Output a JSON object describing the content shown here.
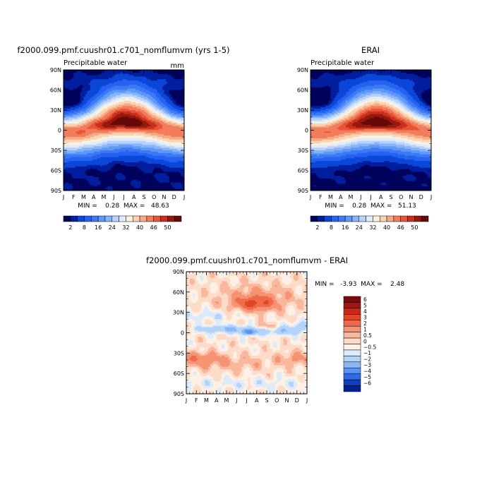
{
  "chart_data": [
    {
      "type": "heatmap",
      "title": "f2000.099.pmf.cuushr01.c701_nomflumvm (yrs 1-5)",
      "subtitle": "Precipitable water",
      "units": "mm",
      "x_ticks": [
        "J",
        "F",
        "M",
        "A",
        "M",
        "J",
        "J",
        "A",
        "S",
        "O",
        "N",
        "D",
        "J"
      ],
      "y_ticks": [
        "90N",
        "60N",
        "30N",
        "0",
        "30S",
        "60S",
        "90S"
      ],
      "stats_text": "MIN =    0.28  MAX =   48.63",
      "min": 0.28,
      "max": 48.63,
      "colorbar_labels": [
        "2",
        "8",
        "16",
        "24",
        "32",
        "40",
        "46",
        "50"
      ],
      "colorbar_colors": [
        "#00035c",
        "#001f9e",
        "#0b47d8",
        "#2562f2",
        "#3d7af5",
        "#5e98f9",
        "#87b3fa",
        "#b7d2fb",
        "#e0ecfd",
        "#fbf2de",
        "#fcd3b2",
        "#f9a885",
        "#f27d5d",
        "#e85536",
        "#c8311c",
        "#96190f",
        "#650a07"
      ],
      "itcz_peak_lat": 8,
      "itcz_peak_month_index": 6.3
    },
    {
      "type": "heatmap",
      "title": "ERAI",
      "subtitle": "Precipitable water",
      "x_ticks": [
        "J",
        "F",
        "M",
        "A",
        "M",
        "J",
        "J",
        "A",
        "S",
        "O",
        "N",
        "D",
        "J"
      ],
      "y_ticks": [
        "90N",
        "60N",
        "30N",
        "0",
        "30S",
        "60S",
        "90S"
      ],
      "stats_text": "MIN =    0.28  MAX =   51.13",
      "min": 0.28,
      "max": 51.13,
      "colorbar_labels": [
        "2",
        "8",
        "16",
        "24",
        "32",
        "40",
        "46",
        "50"
      ],
      "colorbar_colors": [
        "#00035c",
        "#001f9e",
        "#0b47d8",
        "#2562f2",
        "#3d7af5",
        "#5e98f9",
        "#87b3fa",
        "#b7d2fb",
        "#e0ecfd",
        "#fbf2de",
        "#fcd3b2",
        "#f9a885",
        "#f27d5d",
        "#e85536",
        "#c8311c",
        "#96190f",
        "#650a07"
      ],
      "itcz_peak_lat": 8,
      "itcz_peak_month_index": 6.6
    },
    {
      "type": "heatmap",
      "title": "f2000.099.pmf.cuushr01.c701_nomflumvm - ERAI",
      "x_ticks": [
        "J",
        "F",
        "M",
        "A",
        "M",
        "J",
        "J",
        "A",
        "S",
        "O",
        "N",
        "D",
        "J"
      ],
      "y_ticks": [
        "90N",
        "60N",
        "30N",
        "0",
        "30S",
        "60S",
        "90S"
      ],
      "stats_text": "MIN =   -3.93  MAX =    2.48",
      "min": -3.93,
      "max": 2.48,
      "colorbar_labels": [
        "6",
        "5",
        "4",
        "3",
        "2",
        "1",
        "0.5",
        "0",
        "-0.5",
        "-1",
        "-2",
        "-3",
        "-4",
        "-5",
        "-6"
      ],
      "colorbar_colors": [
        "#7e0a0a",
        "#a31611",
        "#c92a18",
        "#e04628",
        "#ee6a4a",
        "#f59373",
        "#f9b79c",
        "#fcdcc8",
        "#fdf1e6",
        "#dcebfb",
        "#b5d3f9",
        "#8bb6f6",
        "#5d92ef",
        "#2f69e3",
        "#0d3fc4",
        "#02209a"
      ]
    }
  ]
}
